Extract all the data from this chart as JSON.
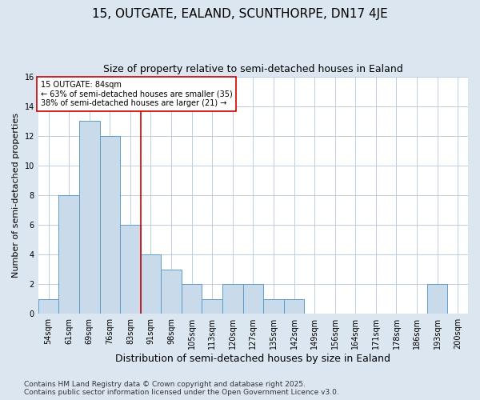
{
  "title1": "15, OUTGATE, EALAND, SCUNTHORPE, DN17 4JE",
  "title2": "Size of property relative to semi-detached houses in Ealand",
  "xlabel": "Distribution of semi-detached houses by size in Ealand",
  "ylabel": "Number of semi-detached properties",
  "categories": [
    "54sqm",
    "61sqm",
    "69sqm",
    "76sqm",
    "83sqm",
    "91sqm",
    "98sqm",
    "105sqm",
    "113sqm",
    "120sqm",
    "127sqm",
    "135sqm",
    "142sqm",
    "149sqm",
    "156sqm",
    "164sqm",
    "171sqm",
    "178sqm",
    "186sqm",
    "193sqm",
    "200sqm"
  ],
  "values": [
    1,
    8,
    13,
    12,
    6,
    4,
    3,
    2,
    1,
    2,
    2,
    1,
    1,
    0,
    0,
    0,
    0,
    0,
    0,
    2,
    0
  ],
  "bar_color": "#c9daea",
  "bar_edge_color": "#5b9ec9",
  "annotation_title": "15 OUTGATE: 84sqm",
  "annotation_line1": "← 63% of semi-detached houses are smaller (35)",
  "annotation_line2": "38% of semi-detached houses are larger (21) →",
  "annotation_box_color": "#ffffff",
  "annotation_box_edge": "#cc0000",
  "vline_color": "#cc0000",
  "vline_x": 5,
  "ylim": [
    0,
    16
  ],
  "yticks": [
    0,
    2,
    4,
    6,
    8,
    10,
    12,
    14,
    16
  ],
  "fig_background_color": "#dce6f0",
  "plot_background": "#ffffff",
  "grid_color": "#c0cfe0",
  "footer1": "Contains HM Land Registry data © Crown copyright and database right 2025.",
  "footer2": "Contains public sector information licensed under the Open Government Licence v3.0.",
  "title1_fontsize": 11,
  "title2_fontsize": 9,
  "xlabel_fontsize": 9,
  "ylabel_fontsize": 8,
  "tick_fontsize": 7,
  "annotation_fontsize": 7,
  "footer_fontsize": 6.5
}
